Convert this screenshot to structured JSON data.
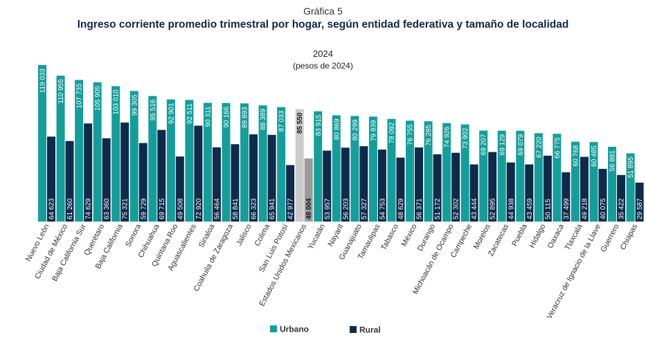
{
  "header": {
    "label": "Gráfica 5",
    "title": "Ingreso corriente promedio trimestral por hogar, según entidad federativa y tamaño de localidad",
    "year": "2024",
    "unit": "(pesos de 2024)"
  },
  "colors": {
    "urbano": "#139e9b",
    "rural": "#0f2a4a",
    "national_urbano": "#cbcbcb",
    "national_rural": "#9a9a9a"
  },
  "chart_data": {
    "type": "bar",
    "title": "Ingreso corriente promedio trimestral por hogar, según entidad federativa y tamaño de localidad",
    "ylabel": "pesos de 2024",
    "ylim": [
      0,
      122000
    ],
    "categories": [
      "Nuevo León",
      "Ciudad de México",
      "Baja California Sur",
      "Querétaro",
      "Baja California",
      "Sonora",
      "Chihuahua",
      "Quintana Roo",
      "Aguascalientes",
      "Sinaloa",
      "Coahuila de Zaragoza",
      "Jalisco",
      "Colima",
      "San Luis Potosí",
      "Estados Unidos Mexicanos",
      "Yucatán",
      "Nayarit",
      "Guanajuato",
      "Tamaulipas",
      "Tabasco",
      "México",
      "Durango",
      "Michoacán de Ocampo",
      "Campeche",
      "Morelos",
      "Zacatecas",
      "Puebla",
      "Hidalgo",
      "Oaxaca",
      "Tlaxcala",
      "Veracruz de Ignacio de la Llave",
      "Guerrero",
      "Chiapas"
    ],
    "series": [
      {
        "name": "Urbano",
        "values": [
          119033,
          110955,
          107735,
          105905,
          103010,
          99305,
          95516,
          92901,
          92511,
          90311,
          90166,
          89893,
          88389,
          87033,
          85550,
          83915,
          80869,
          80299,
          79839,
          78092,
          76755,
          76285,
          74926,
          73902,
          69207,
          69129,
          69079,
          67220,
          66775,
          60768,
          60485,
          56881,
          51895
        ],
        "labels": [
          "119 033",
          "110 955",
          "107 735",
          "105 905",
          "103 010",
          "99 305",
          "95 516",
          "92 901",
          "92 511",
          "90 311",
          "90 166",
          "89 893",
          "88 389",
          "87 033",
          "85 550",
          "83 915",
          "80 869",
          "80 299",
          "79 839",
          "78 092",
          "76 755",
          "76 285",
          "74 926",
          "73 902",
          "69 207",
          "69 129",
          "69 079",
          "67 220",
          "66 775",
          "60 768",
          "60 485",
          "56 881",
          "51 895"
        ]
      },
      {
        "name": "Rural",
        "values": [
          64623,
          61260,
          74629,
          63360,
          75321,
          59729,
          69715,
          49508,
          72920,
          56464,
          58841,
          66323,
          65941,
          42977,
          48004,
          53957,
          56203,
          57327,
          54753,
          48629,
          56371,
          51172,
          52302,
          43444,
          52895,
          44938,
          43459,
          50115,
          37499,
          49218,
          40075,
          35422,
          29587
        ],
        "labels": [
          "64 623",
          "61 260",
          "74 629",
          "63 360",
          "75 321",
          "59 729",
          "69 715",
          "49 508",
          "72 920",
          "56 464",
          "58 841",
          "66 323",
          "65 941",
          "42 977",
          "48 004",
          "53 957",
          "56 203",
          "57 327",
          "54 753",
          "48 629",
          "56 371",
          "51 172",
          "52 302",
          "43 444",
          "52 895",
          "44 938",
          "43 459",
          "50 115",
          "37 499",
          "49 218",
          "40 075",
          "35 422",
          "29 587"
        ]
      }
    ],
    "highlight": "Estados Unidos Mexicanos",
    "legend": [
      "Urbano",
      "Rural"
    ],
    "legend_position": "bottom-center",
    "grid": false
  }
}
